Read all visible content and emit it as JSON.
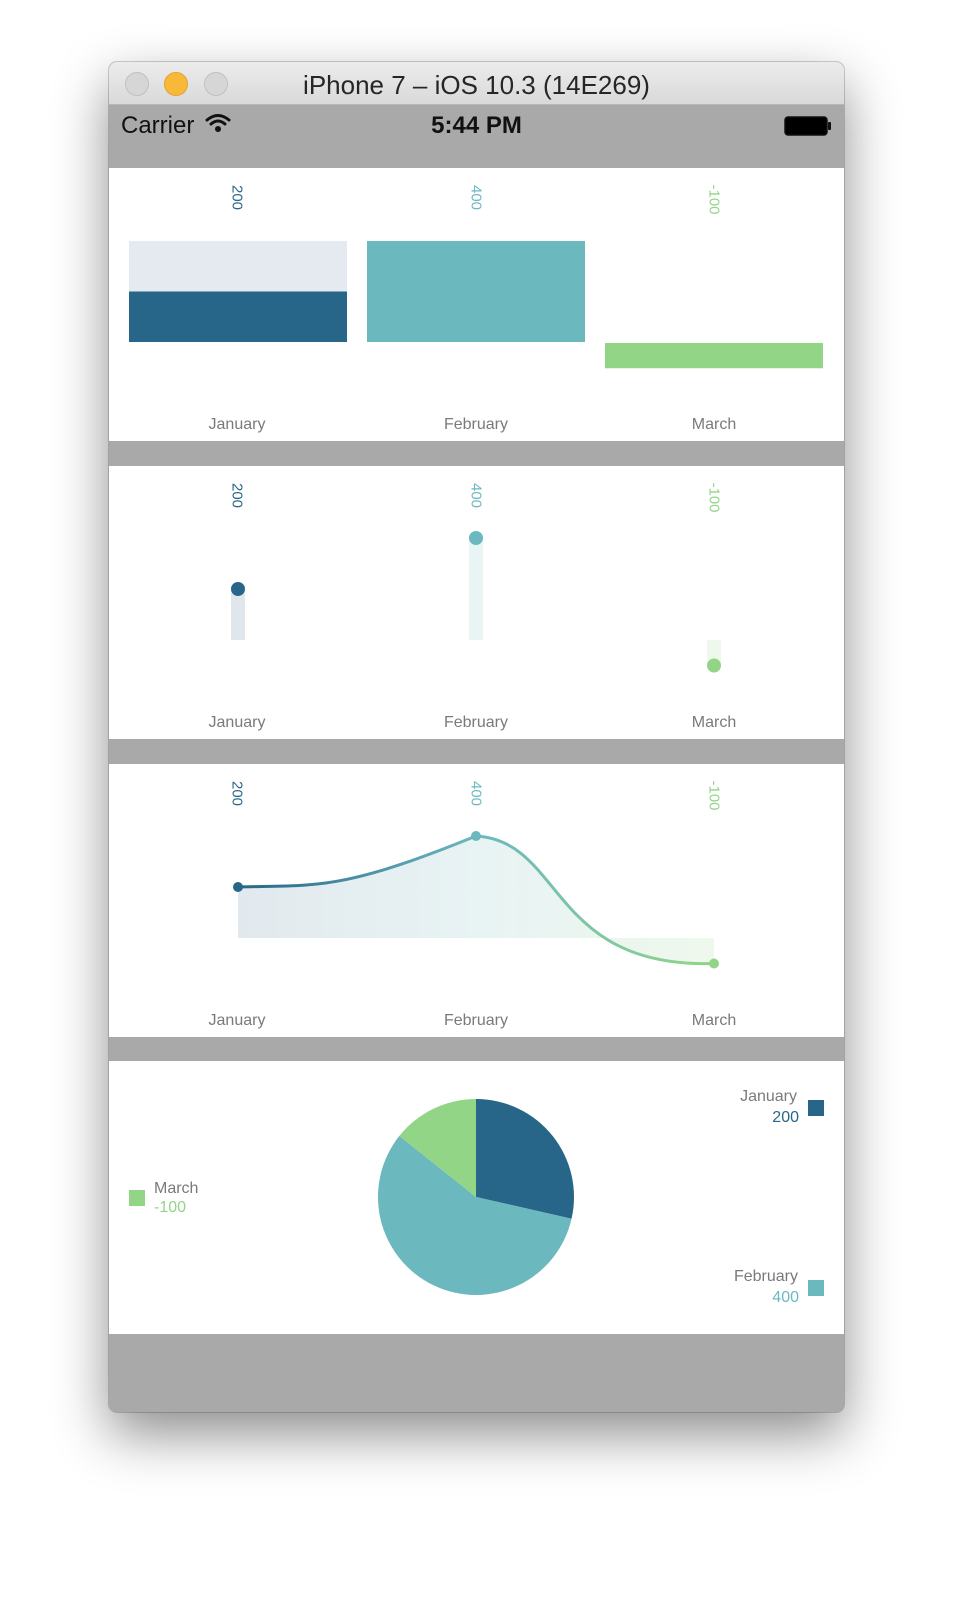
{
  "window": {
    "title": "iPhone 7 – iOS 10.3 (14E269)"
  },
  "status_bar": {
    "carrier": "Carrier",
    "time": "5:44 PM"
  },
  "colors": {
    "january": "#276688",
    "february": "#6bb8bf",
    "march": "#92d587",
    "background": "#a9a9a9"
  },
  "chart_data": [
    {
      "type": "bar",
      "categories": [
        "January",
        "February",
        "March"
      ],
      "values": [
        200,
        400,
        -100
      ],
      "data_labels": [
        "200",
        "400",
        "-100"
      ],
      "ylim": [
        -100,
        400
      ],
      "background_bars": true
    },
    {
      "type": "scatter",
      "style": "lollipop",
      "categories": [
        "January",
        "February",
        "March"
      ],
      "values": [
        200,
        400,
        -100
      ],
      "data_labels": [
        "200",
        "400",
        "-100"
      ],
      "ylim": [
        -100,
        400
      ]
    },
    {
      "type": "area",
      "style": "smooth line with gradient fill",
      "categories": [
        "January",
        "February",
        "March"
      ],
      "values": [
        200,
        400,
        -100
      ],
      "data_labels": [
        "200",
        "400",
        "-100"
      ],
      "ylim": [
        -100,
        400
      ]
    },
    {
      "type": "pie",
      "labels": [
        "January",
        "February",
        "March"
      ],
      "values": [
        200,
        400,
        -100
      ],
      "value_labels": [
        "200",
        "400",
        "-100"
      ],
      "slice_fractions": [
        0.2857,
        0.5714,
        0.1429
      ],
      "legend_placement": "around"
    }
  ]
}
